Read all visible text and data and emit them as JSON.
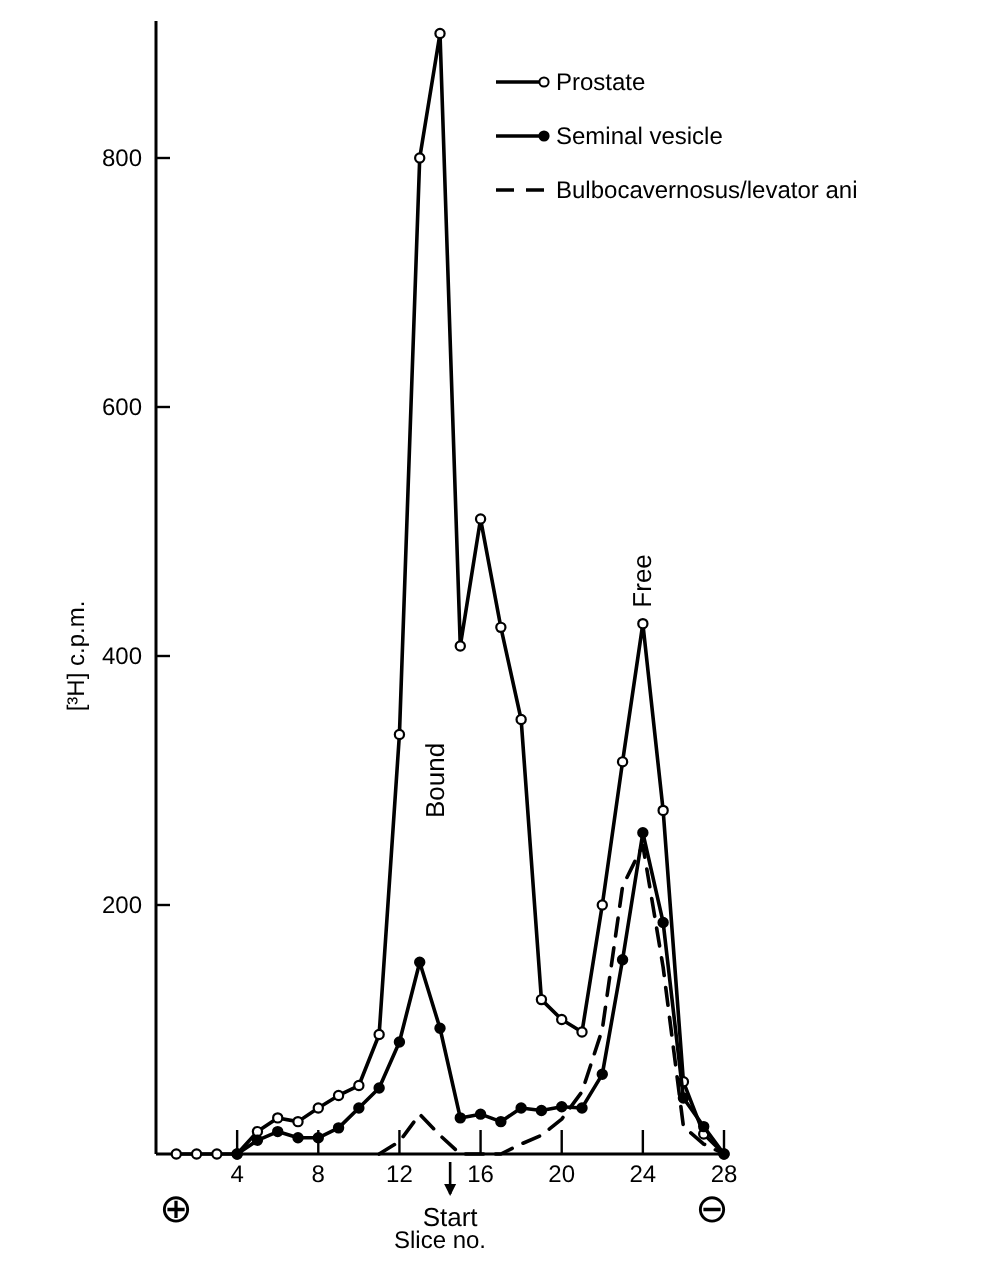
{
  "chart_data": {
    "type": "line",
    "xlabel": "Slice no.",
    "ylabel": "[³H]  c.p.m.",
    "x": [
      1,
      2,
      3,
      4,
      5,
      6,
      7,
      8,
      9,
      10,
      11,
      12,
      13,
      14,
      15,
      16,
      17,
      18,
      19,
      20,
      21,
      22,
      23,
      24,
      25,
      26,
      27,
      28
    ],
    "series": [
      {
        "name": "Prostate",
        "color": "#000000",
        "marker": "circle",
        "values": [
          0,
          0,
          0,
          0,
          18,
          29,
          26,
          37,
          47,
          55,
          96,
          337,
          800,
          900,
          408,
          510,
          423,
          349,
          124,
          108,
          98,
          200,
          315,
          426,
          276,
          58,
          16,
          0
        ]
      },
      {
        "name": "Seminal vesicle",
        "color": "#000000",
        "marker": "circle",
        "values": [
          null,
          null,
          null,
          0,
          11,
          18,
          13,
          13,
          21,
          37,
          53,
          90,
          154,
          101,
          29,
          32,
          26,
          37,
          35,
          38,
          37,
          64,
          156,
          258,
          186,
          45,
          22,
          0
        ]
      },
      {
        "name": "Bulbocavernosus/levator ani",
        "color": "#000000",
        "marker": "none",
        "line_style": "dashed",
        "values": [
          null,
          null,
          null,
          null,
          null,
          null,
          null,
          null,
          null,
          null,
          0,
          10,
          32,
          15,
          0,
          0,
          0,
          8,
          15,
          28,
          50,
          100,
          215,
          248,
          150,
          22,
          8,
          0
        ]
      }
    ],
    "xlim": [
      0,
      28
    ],
    "xticks": [
      4,
      8,
      12,
      16,
      20,
      24,
      28
    ],
    "ylim": [
      0,
      910
    ],
    "yticks": [
      200,
      400,
      600,
      800
    ],
    "grid": false,
    "legend": "top right",
    "annotations": [
      "Bound",
      {
        "text": "Free",
        "x": 24,
        "y": 426
      },
      "Start",
      "⊕",
      "⊖"
    ]
  }
}
